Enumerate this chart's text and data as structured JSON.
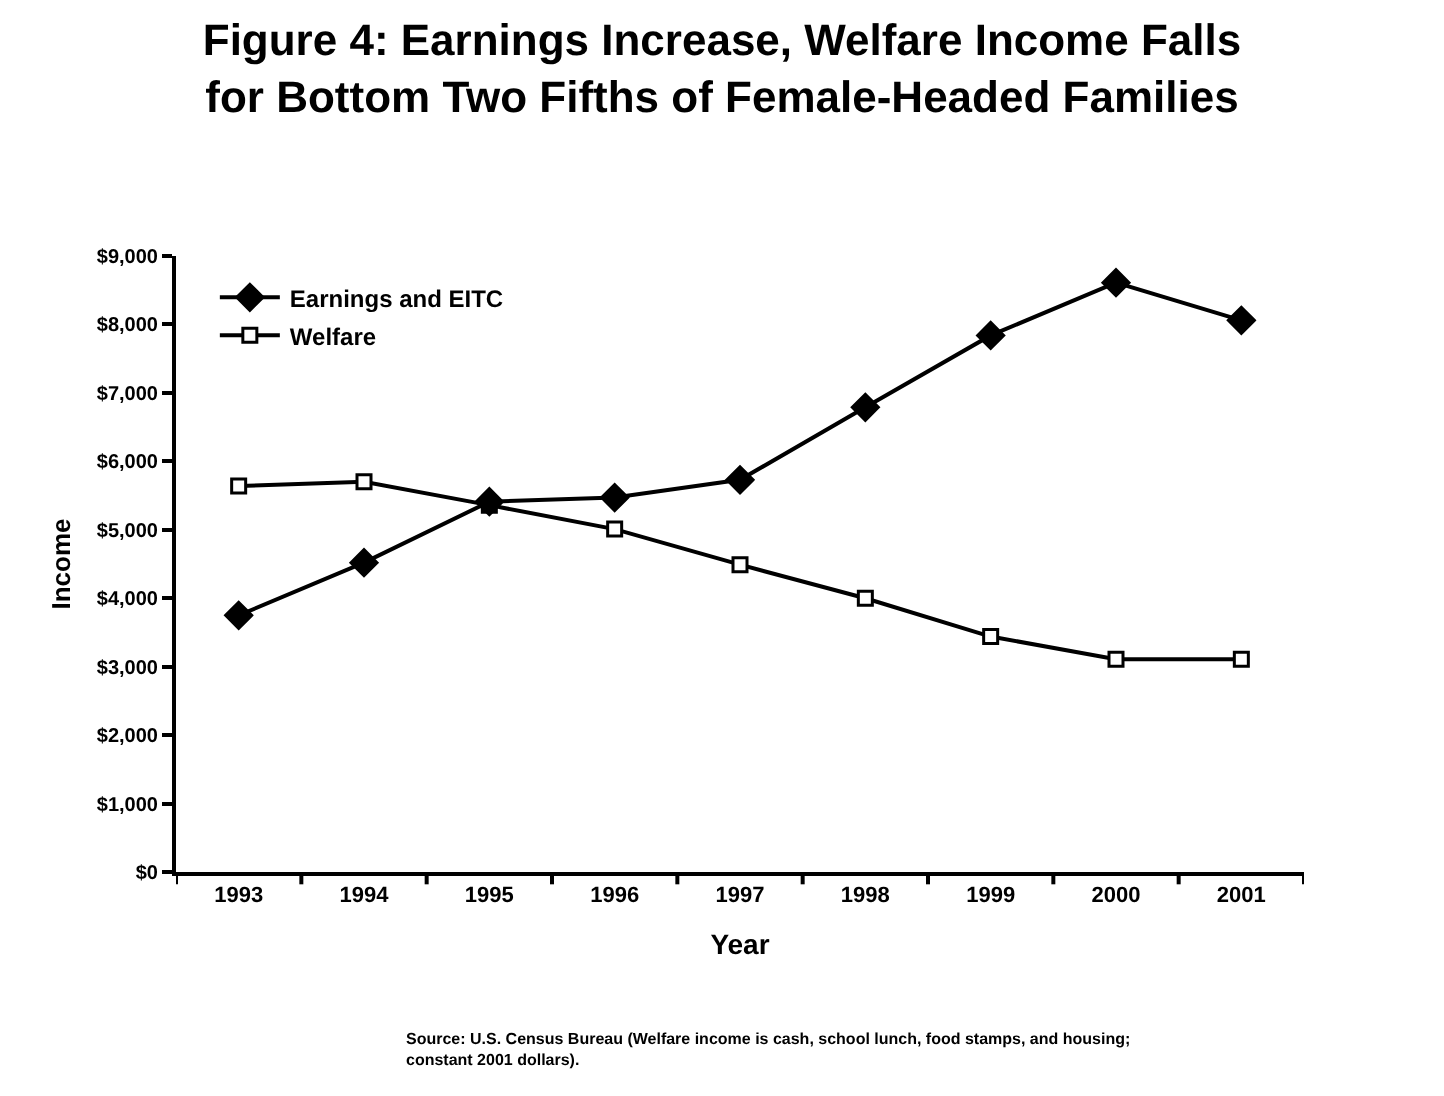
{
  "chart_data": {
    "type": "line",
    "title": "Figure 4: Earnings Increase, Welfare Income Falls for Bottom Two Fifths of Female-Headed Families",
    "xlabel": "Year",
    "ylabel": "Income",
    "categories": [
      "1993",
      "1994",
      "1995",
      "1996",
      "1997",
      "1998",
      "1999",
      "2000",
      "2001"
    ],
    "series": [
      {
        "name": "Earnings and EITC",
        "color": "#000000",
        "marker": "diamond",
        "values": [
          3750,
          4520,
          5410,
          5470,
          5730,
          6790,
          7840,
          8610,
          8060
        ]
      },
      {
        "name": "Welfare",
        "color": "#000000",
        "marker": "square",
        "values": [
          5640,
          5700,
          5360,
          5010,
          4490,
          4000,
          3440,
          3110,
          3110
        ]
      }
    ],
    "ylim": [
      0,
      9000
    ],
    "yticks": [
      {
        "value": 0,
        "label": "$0"
      },
      {
        "value": 1000,
        "label": "$1,000"
      },
      {
        "value": 2000,
        "label": "$2,000"
      },
      {
        "value": 3000,
        "label": "$3,000"
      },
      {
        "value": 4000,
        "label": "$4,000"
      },
      {
        "value": 5000,
        "label": "$5,000"
      },
      {
        "value": 6000,
        "label": "$6,000"
      },
      {
        "value": 7000,
        "label": "$7,000"
      },
      {
        "value": 8000,
        "label": "$8,000"
      },
      {
        "value": 9000,
        "label": "$9,000"
      }
    ],
    "grid": false,
    "legend": "top left",
    "line_style": "solid",
    "annotations": [
      "Source: U.S. Census Bureau (Welfare income is cash, school lunch, food stamps, and housing; constant 2001 dollars)."
    ]
  }
}
